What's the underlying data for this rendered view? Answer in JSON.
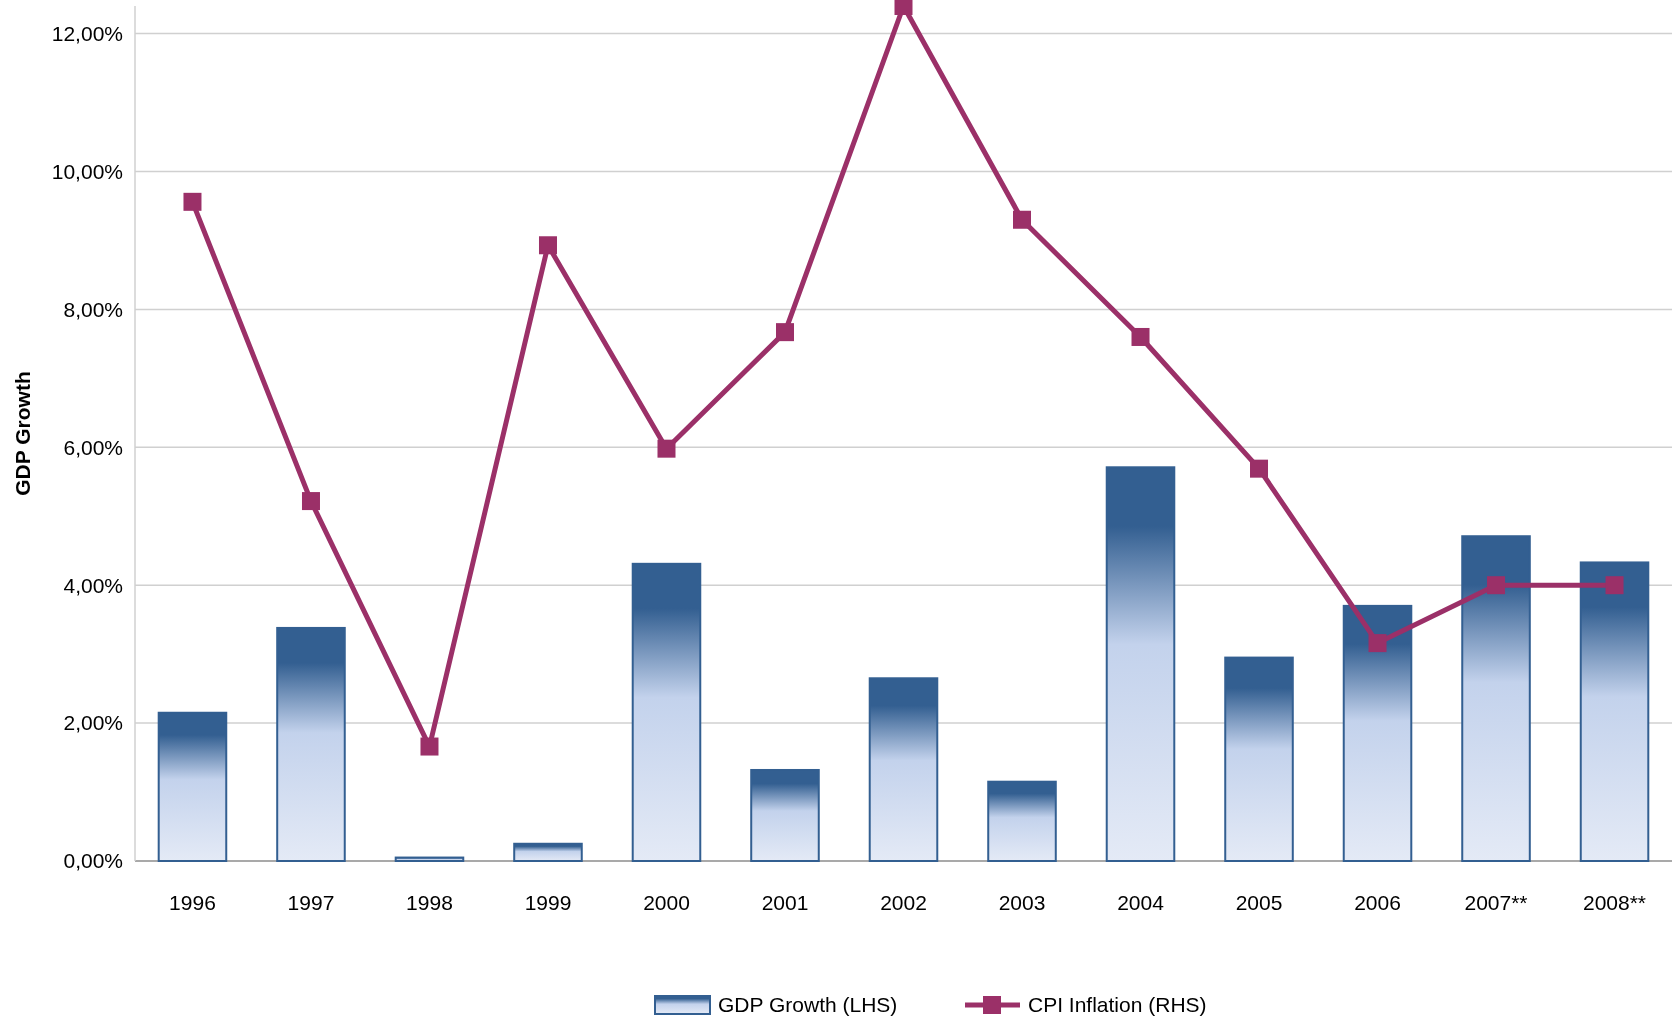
{
  "chart_data": {
    "type": "bar",
    "ylabel": "GDP Growth",
    "categories": [
      "1996",
      "1997",
      "1998",
      "1999",
      "2000",
      "2001",
      "2002",
      "2003",
      "2004",
      "2005",
      "2006",
      "2007**",
      "2008**"
    ],
    "series": [
      {
        "name": "GDP Growth (LHS)",
        "color": "#335f91",
        "values": [
          2.15,
          3.38,
          0.05,
          0.25,
          4.31,
          1.32,
          2.65,
          1.15,
          5.71,
          2.95,
          3.7,
          4.71,
          4.33
        ]
      },
      {
        "name": "CPI Inflation (RHS)",
        "type": "line",
        "color": "#9b3068",
        "marker": "square",
        "values": [
          9.56,
          5.22,
          1.66,
          8.93,
          5.98,
          7.67,
          12.4,
          9.3,
          7.6,
          5.69,
          3.16,
          4.0,
          4.0
        ]
      }
    ],
    "ylim": [
      0,
      12.4
    ],
    "yticks": [
      {
        "value": 0,
        "label": "0,00%"
      },
      {
        "value": 2,
        "label": "2,00%"
      },
      {
        "value": 4,
        "label": "4,00%"
      },
      {
        "value": 6,
        "label": "6,00%"
      },
      {
        "value": 8,
        "label": "8,00%"
      },
      {
        "value": 10,
        "label": "10,00%"
      },
      {
        "value": 12,
        "label": "12,00%"
      }
    ],
    "grid": "y",
    "legend": "bottom"
  }
}
